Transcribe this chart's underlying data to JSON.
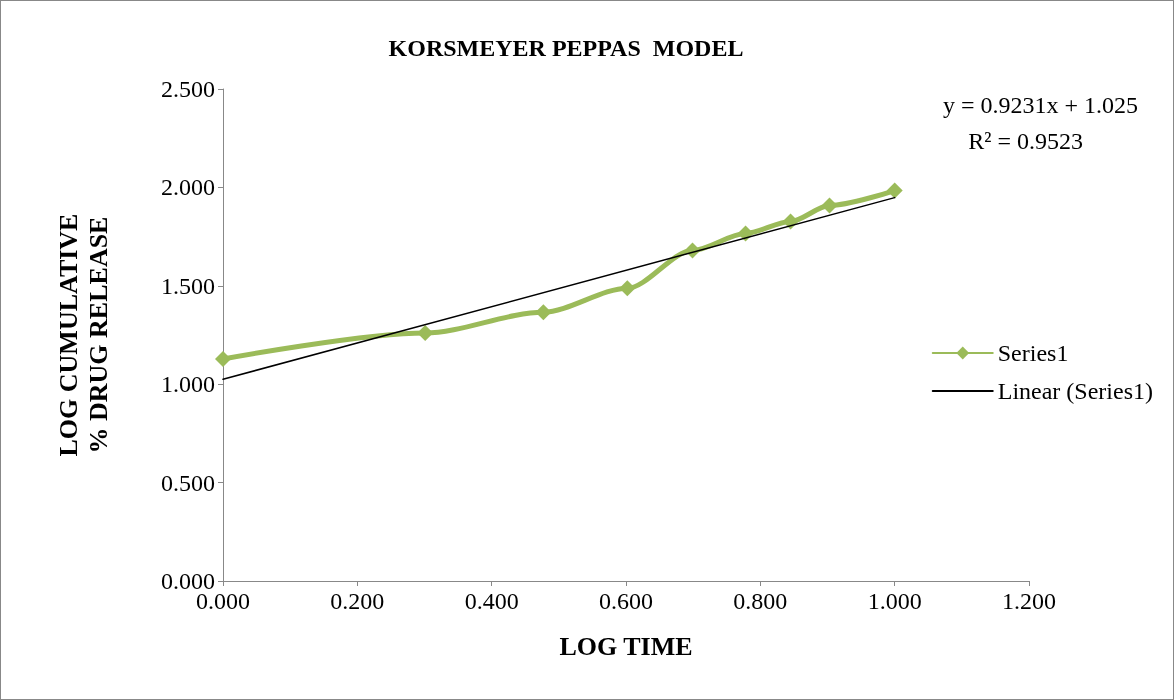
{
  "chart_data": {
    "type": "line",
    "title": "KORSMEYER PEPPAS  MODEL",
    "xlabel": "LOG TIME",
    "ylabel": "LOG CUMULATIVE % DRUG RELEASE",
    "xlim": [
      0,
      1.2
    ],
    "xticks": [
      {
        "value": 0,
        "label": "0.000"
      },
      {
        "value": 0.2,
        "label": "0.200"
      },
      {
        "value": 0.4,
        "label": "0.400"
      },
      {
        "value": 0.6,
        "label": "0.600"
      },
      {
        "value": 0.8,
        "label": "0.800"
      },
      {
        "value": 1.0,
        "label": "1.000"
      },
      {
        "value": 1.2,
        "label": "1.200"
      }
    ],
    "ylim": [
      0,
      2.5
    ],
    "yticks": [
      {
        "value": 0,
        "label": "0.000"
      },
      {
        "value": 0.5,
        "label": "0.500"
      },
      {
        "value": 1.0,
        "label": "1.000"
      },
      {
        "value": 1.5,
        "label": "1.500"
      },
      {
        "value": 2.0,
        "label": "2.000"
      },
      {
        "value": 2.5,
        "label": "2.500"
      }
    ],
    "x": [
      0,
      0.301,
      0.477,
      0.602,
      0.699,
      0.778,
      0.845,
      0.903,
      1.0
    ],
    "series": [
      {
        "name": "Series1",
        "color": "#9bbb59",
        "marker": "diamond",
        "line_style": "solid",
        "values": [
          1.128,
          1.26,
          1.366,
          1.488,
          1.68,
          1.766,
          1.827,
          1.908,
          1.984
        ]
      },
      {
        "name": "Linear (Series1)",
        "color": "#000000",
        "marker": "none",
        "line_style": "solid",
        "x": [
          0,
          1.0
        ],
        "values": [
          1.025,
          1.948
        ]
      }
    ],
    "annotations": [
      "y = 0.9231x + 1.025",
      "R² = 0.9523"
    ],
    "grid": false,
    "legend": "right"
  }
}
